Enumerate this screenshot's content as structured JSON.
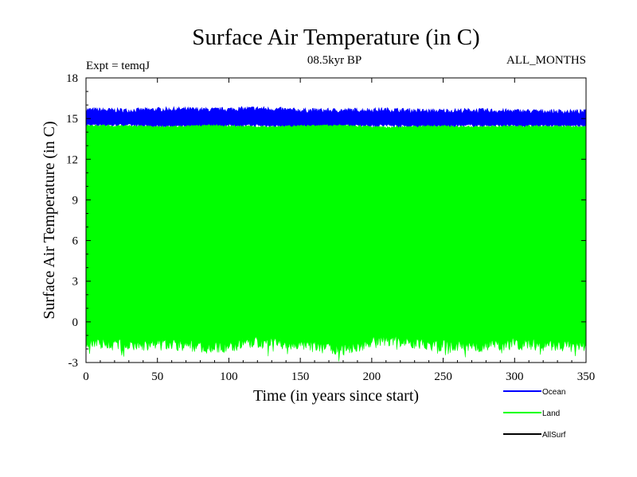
{
  "chart_data": {
    "type": "line",
    "title": "Surface Air Temperature (in C)",
    "subtitle": "08.5kyr BP",
    "expt_label": "Expt = temqJ",
    "months_label": "ALL_MONTHS",
    "xlabel": "Time (in years since start)",
    "ylabel": "Surface Air Temperature (in C)",
    "xlim": [
      0,
      350
    ],
    "ylim": [
      -3,
      18
    ],
    "xticks": [
      0,
      50,
      100,
      150,
      200,
      250,
      300,
      350
    ],
    "yticks": [
      -3,
      0,
      3,
      6,
      9,
      12,
      15,
      18
    ],
    "xtick_labels": [
      "0",
      "50",
      "100",
      "150",
      "200",
      "250",
      "300",
      "350"
    ],
    "ytick_labels": [
      "-3",
      "0",
      "3",
      "6",
      "9",
      "12",
      "15",
      "18"
    ],
    "grid": false,
    "legend_position": "bottom-right",
    "series": [
      {
        "name": "Ocean",
        "color": "#0000ff",
        "band_low": [
          14.55,
          14.5,
          14.4,
          14.45,
          14.5,
          14.4,
          14.45,
          14.5,
          14.4,
          14.5,
          14.45,
          14.45
        ],
        "band_high": [
          15.65,
          15.6,
          15.7,
          15.65,
          15.75,
          15.6,
          15.6,
          15.65,
          15.55,
          15.6,
          15.55,
          15.5
        ],
        "band_x": [
          0,
          30,
          60,
          90,
          120,
          150,
          180,
          210,
          240,
          270,
          300,
          350
        ]
      },
      {
        "name": "Land",
        "color": "#00ff00",
        "band_low": [
          -1.6,
          -2.0,
          -1.8,
          -2.1,
          -1.7,
          -1.9,
          -2.2,
          -1.5,
          -1.9,
          -2.0,
          -1.8,
          -2.0
        ],
        "band_high": [
          14.5,
          14.45,
          14.4,
          14.5,
          14.4,
          14.45,
          14.5,
          14.35,
          14.45,
          14.4,
          14.45,
          14.4
        ],
        "band_x": [
          0,
          30,
          60,
          90,
          120,
          150,
          180,
          210,
          240,
          270,
          300,
          350
        ]
      },
      {
        "name": "AllSurf",
        "color": "#000000",
        "band_low": [],
        "band_high": [],
        "band_x": []
      }
    ]
  }
}
